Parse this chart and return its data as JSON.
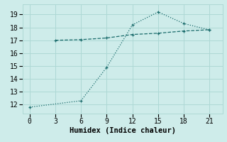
{
  "xlabel": "Humidex (Indice chaleur)",
  "background_color": "#ceecea",
  "grid_color": "#aed8d5",
  "line_color": "#1a6b6b",
  "series1_x": [
    3,
    6,
    9,
    12,
    15,
    18,
    21
  ],
  "series1_y": [
    17.0,
    17.05,
    17.18,
    17.45,
    17.55,
    17.72,
    17.82
  ],
  "series2_x": [
    0,
    6,
    9,
    12,
    15,
    18,
    21
  ],
  "series2_y": [
    11.8,
    12.3,
    14.9,
    18.2,
    19.2,
    18.3,
    17.8
  ],
  "xlim": [
    -0.8,
    22.5
  ],
  "ylim": [
    11.3,
    19.8
  ],
  "xticks": [
    0,
    3,
    6,
    9,
    12,
    15,
    18,
    21
  ],
  "yticks": [
    12,
    13,
    14,
    15,
    16,
    17,
    18,
    19
  ]
}
